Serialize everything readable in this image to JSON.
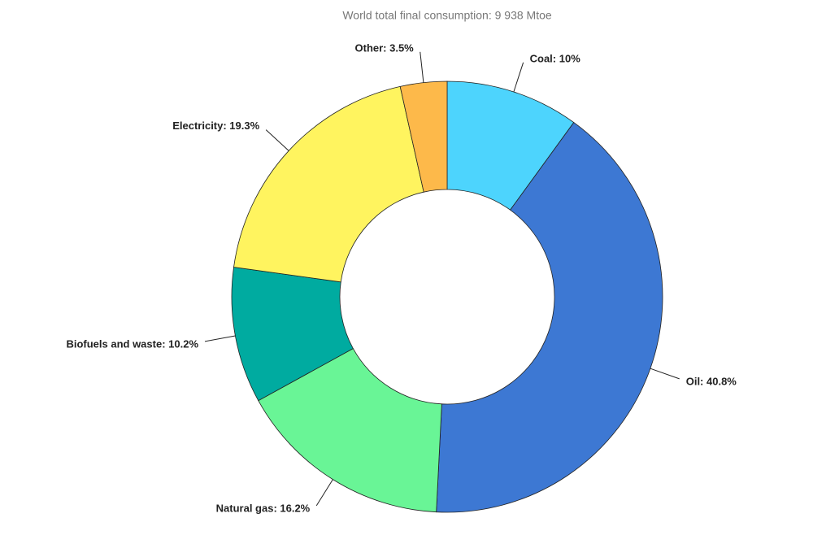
{
  "chart_data": {
    "type": "donut",
    "title": "World total final consumption: 9 938 Mtoe",
    "values": [
      10,
      40.8,
      16.2,
      10.2,
      19.3,
      3.5
    ],
    "value_labels": [
      "Coal: 10%",
      "Oil: 40.8%",
      "Natural gas: 16.2%",
      "Biofuels and waste: 10.2%",
      "Electricity: 19.3%",
      "Other: 3.5%"
    ],
    "colors": [
      "#4dd4fd",
      "#3d78d3",
      "#69f596",
      "#00aba0",
      "#fff45f",
      "#fdb94a"
    ]
  }
}
